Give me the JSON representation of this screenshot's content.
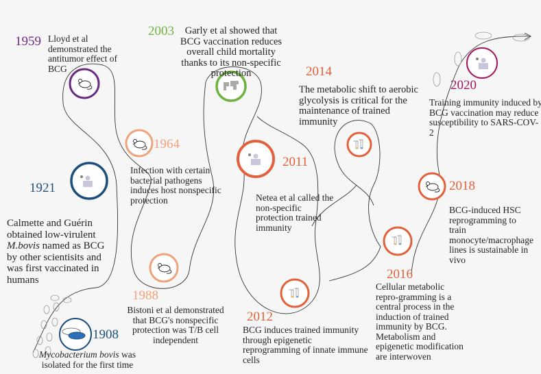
{
  "colors": {
    "purple": "#6b2a82",
    "green": "#6db33f",
    "peach": "#f0a27b",
    "navy": "#1d4e79",
    "orange": "#e2603a",
    "magenta": "#a3165e",
    "line": "#333333"
  },
  "events": {
    "e1908": {
      "year": "1908",
      "text_italic": "Mycobacterium bovis",
      "text_rest": " was isolated for the first time",
      "icon": "petri-dish-icon"
    },
    "e1921": {
      "year": "1921",
      "text_pre": "Calmette and Guérin obtained low-virulent ",
      "text_italic": "M.bovis",
      "text_post": " named as BCG by other scientisits and was first vaccinated in humans",
      "icon": "person-idea-icon"
    },
    "e1959": {
      "year": "1959",
      "text": "Lloyd et al demonstrated the antitumor effect of BCG",
      "icon": "mouse-icon"
    },
    "e1964": {
      "year": "1964",
      "text": "Infection with certain bacterial pathogens induces host nonspecific protection",
      "icon": "mouse-icon"
    },
    "e1988": {
      "year": "1988",
      "text": "Bistoni et al demonstrated that BCG's nonspecific protection was T/B cell independent",
      "icon": "mouse-icon"
    },
    "e2003": {
      "year": "2003",
      "text": "Garly et al showed that BCG vaccination reduces overall child mortality thanks to its non-specific protection",
      "icon": "world-map-icon"
    },
    "e2011": {
      "year": "2011",
      "text": "Netea et al called the non-specific protection trained immunity",
      "icon": "person-idea-icon"
    },
    "e2012": {
      "year": "2012",
      "text": "BCG induces trained immunity through epigenetic reprogramming of innate immune cells",
      "icon": "test-tubes-icon"
    },
    "e2014": {
      "year": "2014",
      "text": "The metabolic shift to aerobic glycolysis is critical for the maintenance of trained immunity",
      "icon": "test-tubes-icon"
    },
    "e2016": {
      "year": "2016",
      "text": "Cellular metabolic repro-gramming is a central process in the induction of trained immunity by BCG. Metabolism and epigenetic modification are interwoven",
      "icon": "test-tubes-icon"
    },
    "e2018": {
      "year": "2018",
      "text": "BCG-induced HSC reprogramming to train monocyte/macrophage lines is sustainable in vivo",
      "icon": "mouse-icon"
    },
    "e2020": {
      "year": "2020",
      "text": "Training immunity induced by BCG vaccination may reduce susceptibility to SARS-COV-2",
      "icon": "person-idea-icon"
    }
  }
}
